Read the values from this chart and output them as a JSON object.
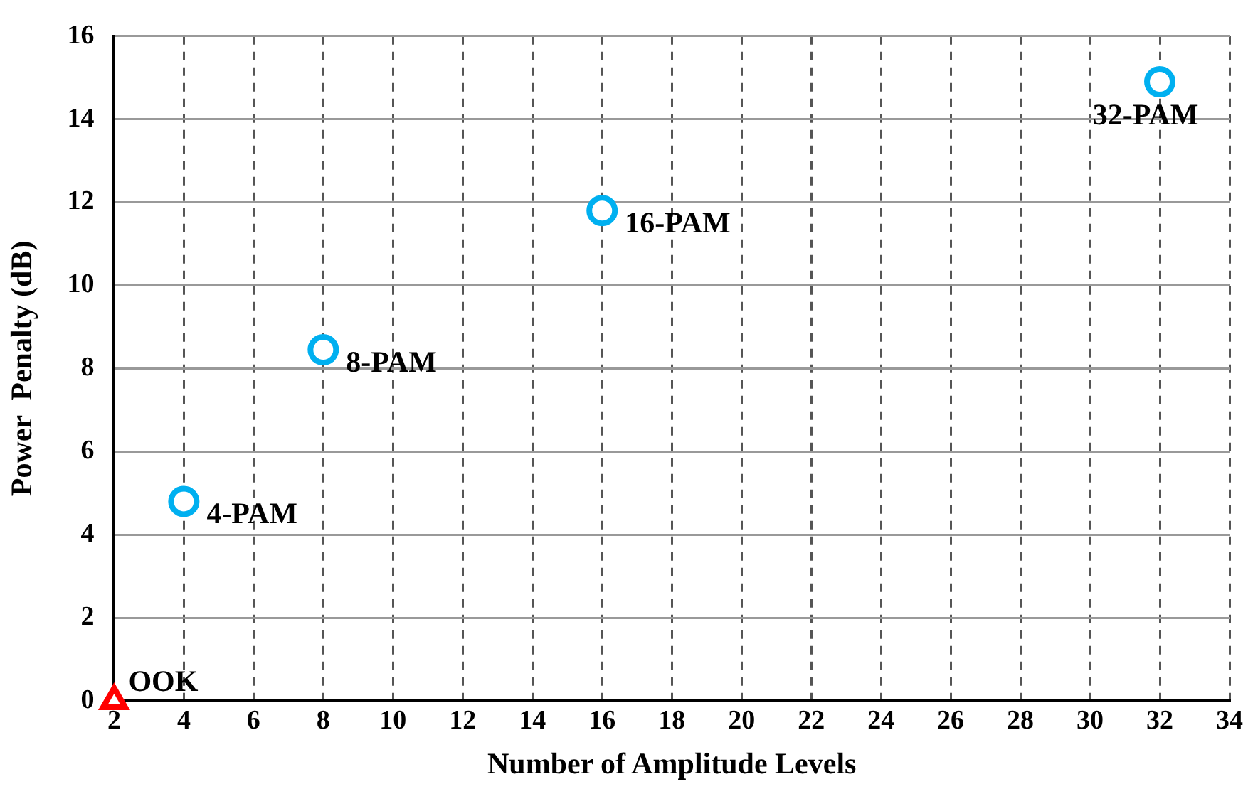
{
  "chart_data": {
    "type": "scatter",
    "xlabel": "Number of Amplitude Levels",
    "ylabel": "Power  Penalty (dB)",
    "xlim": [
      2,
      34
    ],
    "xticks": [
      2,
      4,
      6,
      8,
      10,
      12,
      14,
      16,
      18,
      20,
      22,
      24,
      26,
      28,
      30,
      32,
      34
    ],
    "ylim": [
      0,
      16
    ],
    "yticks": [
      0,
      2,
      4,
      6,
      8,
      10,
      12,
      14,
      16
    ],
    "grid": true,
    "legend": false,
    "series": [
      {
        "color": "#00b0f0",
        "marker": "circle",
        "x": [
          4,
          8,
          16,
          32
        ],
        "values": [
          4.8,
          8.45,
          11.8,
          14.9
        ]
      },
      {
        "color": "#ff0000",
        "marker": "triangle",
        "x": [
          2
        ],
        "values": [
          0
        ]
      }
    ],
    "annotations": [
      {
        "text": "4-PAM",
        "x": 4,
        "y": 4.8
      },
      {
        "text": "8-PAM",
        "x": 8,
        "y": 8.45
      },
      {
        "text": "16-PAM",
        "x": 16,
        "y": 11.8
      },
      {
        "text": "32-PAM",
        "x": 32,
        "y": 14.9
      },
      {
        "text": "OOK",
        "x": 2,
        "y": 0
      }
    ]
  }
}
